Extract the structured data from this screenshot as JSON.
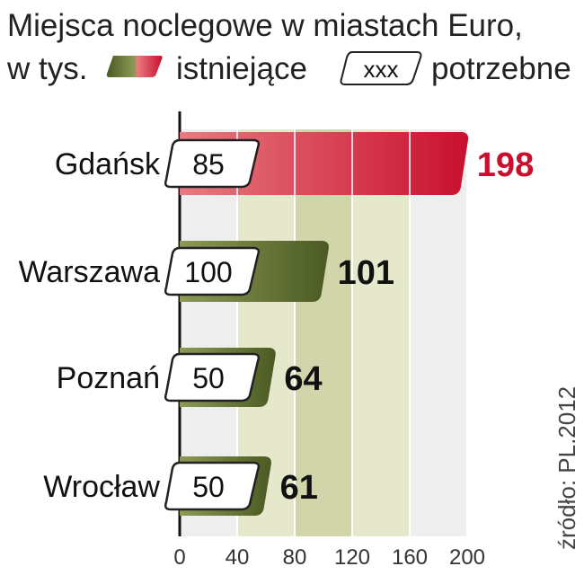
{
  "title": {
    "line1": "Miejsca noclegowe w miastach Euro,",
    "line2": "w tys."
  },
  "legend": {
    "existing_label": "istniejące",
    "needed_box": "xxx",
    "needed_label": "potrzebne"
  },
  "source": "źródło: PL.2012",
  "colors": {
    "existing_green_dark": "#4a5a22",
    "existing_green_light": "#8c9a55",
    "highlight_red_dark": "#c8102e",
    "highlight_red_light": "#e87a80",
    "highlight_text": "#c8102e",
    "band_light": "#e6e8cc",
    "band_mid": "#d2d5aa",
    "plot_bg": "#eeeeee"
  },
  "chart_data": {
    "type": "bar",
    "orientation": "horizontal",
    "categories": [
      "Gdańsk",
      "Warszawa",
      "Poznań",
      "Wrocław"
    ],
    "series": [
      {
        "name": "istniejące",
        "values": [
          198,
          101,
          64,
          61
        ]
      },
      {
        "name": "potrzebne",
        "values": [
          85,
          100,
          50,
          50
        ]
      }
    ],
    "highlight_category": "Gdańsk",
    "xlim": [
      0,
      200
    ],
    "xticks": [
      0,
      40,
      80,
      120,
      160,
      200
    ],
    "grid": true,
    "legend_position": "top"
  }
}
